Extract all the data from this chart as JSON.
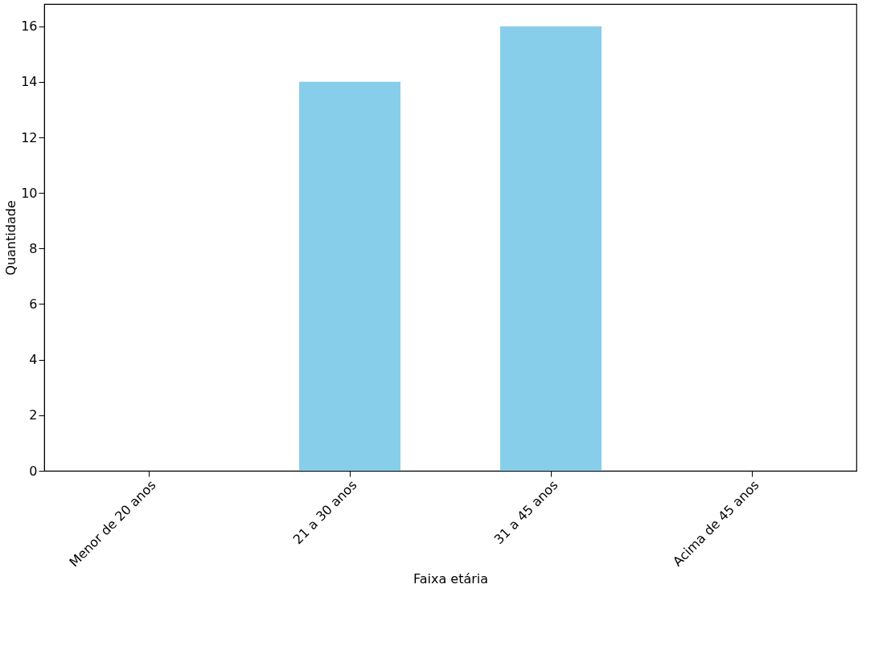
{
  "chart_data": {
    "type": "bar",
    "xlabel": "Faixa etária",
    "ylabel": "Quantidade",
    "categories": [
      "Menor de 20 anos",
      "21 a 30 anos",
      "31 a 45 anos",
      "Acima de 45 anos"
    ],
    "values": [
      0,
      14,
      16,
      0
    ],
    "color": "#87ceeb",
    "ylim": [
      0,
      16.8
    ],
    "yticks": [
      0,
      2,
      4,
      6,
      8,
      10,
      12,
      14,
      16
    ],
    "grid": false
  }
}
